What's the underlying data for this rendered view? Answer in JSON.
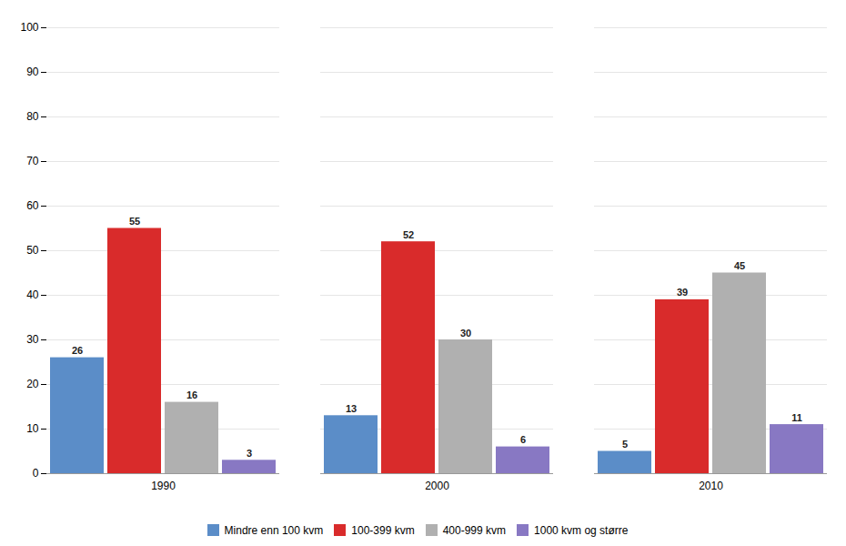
{
  "chart_data": {
    "type": "bar",
    "categories": [
      "1990",
      "2000",
      "2010"
    ],
    "series": [
      {
        "name": "Mindre enn 100 kvm",
        "color": "#5B8DC8",
        "values": [
          26,
          13,
          5
        ]
      },
      {
        "name": "100-399 kvm",
        "color": "#D92B2B",
        "values": [
          55,
          52,
          39
        ]
      },
      {
        "name": "400-999 kvm",
        "color": "#B0B0B0",
        "values": [
          16,
          30,
          45
        ]
      },
      {
        "name": "1000 kvm og større",
        "color": "#8878C3",
        "values": [
          3,
          6,
          11
        ]
      }
    ],
    "ylim": [
      0,
      100
    ],
    "yticks": [
      0,
      10,
      20,
      30,
      40,
      50,
      60,
      70,
      80,
      90,
      100
    ],
    "grid": true,
    "legend": "bottom",
    "data_labels": true
  }
}
